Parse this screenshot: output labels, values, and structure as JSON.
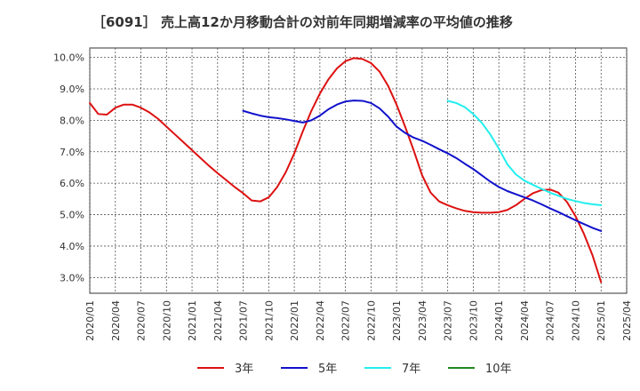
{
  "chart_data": {
    "type": "line",
    "title": "［6091］ 売上高12か月移動合計の対前年同期増減率の平均値の推移",
    "xlabel": "",
    "ylabel": "",
    "ylim": [
      2.5,
      10.3
    ],
    "y_ticks": [
      "3.0%",
      "4.0%",
      "5.0%",
      "6.0%",
      "7.0%",
      "8.0%",
      "9.0%",
      "10.0%"
    ],
    "y_tick_values": [
      3,
      4,
      5,
      6,
      7,
      8,
      9,
      10
    ],
    "x_ticks": [
      "2020/01",
      "2020/04",
      "2020/07",
      "2020/10",
      "2021/01",
      "2021/04",
      "2021/07",
      "2021/10",
      "2022/01",
      "2022/04",
      "2022/07",
      "2022/10",
      "2023/01",
      "2023/04",
      "2023/07",
      "2023/10",
      "2024/01",
      "2024/04",
      "2024/07",
      "2024/10",
      "2025/01",
      "2025/04"
    ],
    "grid": true,
    "legend_position": "bottom",
    "series": [
      {
        "name": "3年",
        "color": "#dd1111",
        "points": [
          [
            "2020/01",
            8.55
          ],
          [
            "2020/02",
            8.2
          ],
          [
            "2020/03",
            8.18
          ],
          [
            "2020/04",
            8.4
          ],
          [
            "2020/05",
            8.5
          ],
          [
            "2020/06",
            8.5
          ],
          [
            "2020/07",
            8.4
          ],
          [
            "2020/08",
            8.25
          ],
          [
            "2020/09",
            8.05
          ],
          [
            "2020/10",
            7.8
          ],
          [
            "2020/11",
            7.55
          ],
          [
            "2020/12",
            7.3
          ],
          [
            "2021/01",
            7.05
          ],
          [
            "2021/02",
            6.8
          ],
          [
            "2021/03",
            6.55
          ],
          [
            "2021/04",
            6.32
          ],
          [
            "2021/05",
            6.1
          ],
          [
            "2021/06",
            5.88
          ],
          [
            "2021/07",
            5.68
          ],
          [
            "2021/08",
            5.45
          ],
          [
            "2021/09",
            5.42
          ],
          [
            "2021/10",
            5.55
          ],
          [
            "2021/11",
            5.88
          ],
          [
            "2021/12",
            6.35
          ],
          [
            "2022/01",
            6.95
          ],
          [
            "2022/02",
            7.65
          ],
          [
            "2022/03",
            8.3
          ],
          [
            "2022/04",
            8.85
          ],
          [
            "2022/05",
            9.3
          ],
          [
            "2022/06",
            9.65
          ],
          [
            "2022/07",
            9.88
          ],
          [
            "2022/08",
            9.98
          ],
          [
            "2022/09",
            9.95
          ],
          [
            "2022/10",
            9.82
          ],
          [
            "2022/11",
            9.55
          ],
          [
            "2022/12",
            9.1
          ],
          [
            "2023/01",
            8.5
          ],
          [
            "2023/02",
            7.8
          ],
          [
            "2023/03",
            7.05
          ],
          [
            "2023/04",
            6.25
          ],
          [
            "2023/05",
            5.7
          ],
          [
            "2023/06",
            5.42
          ],
          [
            "2023/07",
            5.3
          ],
          [
            "2023/08",
            5.2
          ],
          [
            "2023/09",
            5.12
          ],
          [
            "2023/10",
            5.08
          ],
          [
            "2023/11",
            5.06
          ],
          [
            "2023/12",
            5.06
          ],
          [
            "2024/01",
            5.08
          ],
          [
            "2024/02",
            5.15
          ],
          [
            "2024/03",
            5.3
          ],
          [
            "2024/04",
            5.5
          ],
          [
            "2024/05",
            5.68
          ],
          [
            "2024/06",
            5.78
          ],
          [
            "2024/07",
            5.8
          ],
          [
            "2024/08",
            5.7
          ],
          [
            "2024/09",
            5.4
          ],
          [
            "2024/10",
            4.95
          ],
          [
            "2024/11",
            4.38
          ],
          [
            "2024/12",
            3.7
          ],
          [
            "2025/01",
            2.85
          ]
        ]
      },
      {
        "name": "5年",
        "color": "#1111cc",
        "points": [
          [
            "2021/07",
            8.3
          ],
          [
            "2021/08",
            8.22
          ],
          [
            "2021/09",
            8.15
          ],
          [
            "2021/10",
            8.1
          ],
          [
            "2021/11",
            8.07
          ],
          [
            "2021/12",
            8.03
          ],
          [
            "2022/01",
            7.98
          ],
          [
            "2022/02",
            7.93
          ],
          [
            "2022/03",
            8.0
          ],
          [
            "2022/04",
            8.15
          ],
          [
            "2022/05",
            8.35
          ],
          [
            "2022/06",
            8.5
          ],
          [
            "2022/07",
            8.6
          ],
          [
            "2022/08",
            8.63
          ],
          [
            "2022/09",
            8.62
          ],
          [
            "2022/10",
            8.55
          ],
          [
            "2022/11",
            8.38
          ],
          [
            "2022/12",
            8.12
          ],
          [
            "2023/01",
            7.8
          ],
          [
            "2023/02",
            7.6
          ],
          [
            "2023/03",
            7.45
          ],
          [
            "2023/04",
            7.35
          ],
          [
            "2023/05",
            7.22
          ],
          [
            "2023/06",
            7.08
          ],
          [
            "2023/07",
            6.95
          ],
          [
            "2023/08",
            6.8
          ],
          [
            "2023/09",
            6.62
          ],
          [
            "2023/10",
            6.45
          ],
          [
            "2023/11",
            6.25
          ],
          [
            "2023/12",
            6.05
          ],
          [
            "2024/01",
            5.88
          ],
          [
            "2024/02",
            5.75
          ],
          [
            "2024/03",
            5.65
          ],
          [
            "2024/04",
            5.55
          ],
          [
            "2024/05",
            5.45
          ],
          [
            "2024/06",
            5.33
          ],
          [
            "2024/07",
            5.2
          ],
          [
            "2024/08",
            5.08
          ],
          [
            "2024/09",
            4.95
          ],
          [
            "2024/10",
            4.82
          ],
          [
            "2024/11",
            4.7
          ],
          [
            "2024/12",
            4.58
          ],
          [
            "2025/01",
            4.48
          ]
        ]
      },
      {
        "name": "7年",
        "color": "#22eeee",
        "points": [
          [
            "2023/07",
            8.62
          ],
          [
            "2023/08",
            8.55
          ],
          [
            "2023/09",
            8.42
          ],
          [
            "2023/10",
            8.2
          ],
          [
            "2023/11",
            7.92
          ],
          [
            "2023/12",
            7.55
          ],
          [
            "2024/01",
            7.1
          ],
          [
            "2024/02",
            6.6
          ],
          [
            "2024/03",
            6.28
          ],
          [
            "2024/04",
            6.08
          ],
          [
            "2024/05",
            5.95
          ],
          [
            "2024/06",
            5.82
          ],
          [
            "2024/07",
            5.7
          ],
          [
            "2024/08",
            5.6
          ],
          [
            "2024/09",
            5.5
          ],
          [
            "2024/10",
            5.43
          ],
          [
            "2024/11",
            5.37
          ],
          [
            "2024/12",
            5.33
          ],
          [
            "2025/01",
            5.3
          ]
        ]
      },
      {
        "name": "10年",
        "color": "#228822",
        "points": []
      }
    ]
  }
}
